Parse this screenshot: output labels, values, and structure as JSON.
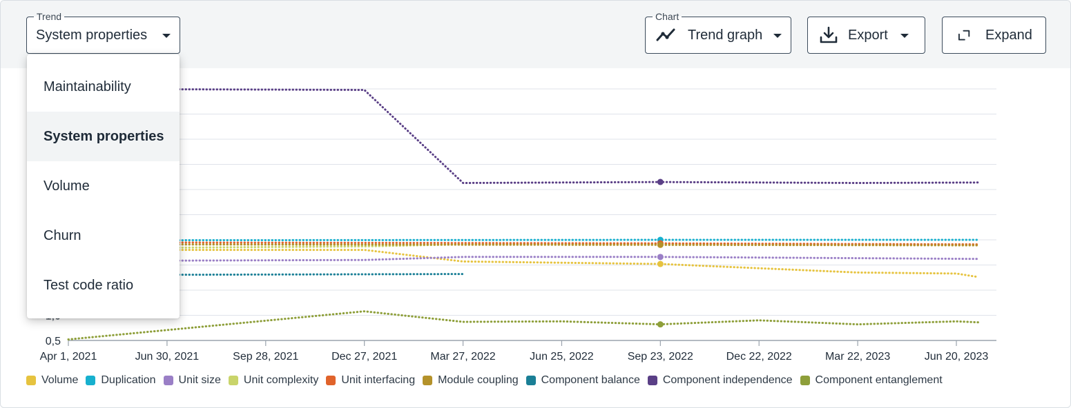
{
  "toolbar": {
    "trend_legend": "Trend",
    "trend_value": "System properties",
    "chart_legend": "Chart",
    "chart_value": "Trend graph",
    "export_label": "Export",
    "expand_label": "Expand"
  },
  "menu": {
    "items": [
      {
        "label": "Maintainability"
      },
      {
        "label": "System properties",
        "selected": true
      },
      {
        "label": "Volume"
      },
      {
        "label": "Churn"
      },
      {
        "label": "Test code ratio"
      }
    ]
  },
  "colors": {
    "grid": "#dfe3ea",
    "axis": "#9aa3ad"
  },
  "chart_data": {
    "type": "line",
    "x_ticks": [
      "Apr 1, 2021",
      "Jun 30, 2021",
      "Sep 28, 2021",
      "Dec 27, 2021",
      "Mar 27, 2022",
      "Jun 25, 2022",
      "Sep 23, 2022",
      "Dec 22, 2022",
      "Mar 22, 2023",
      "Jun 20, 2023"
    ],
    "y_ticks": [
      {
        "value": 0.5,
        "label": "0,5"
      },
      {
        "value": 1.0,
        "label": "1,0"
      }
    ],
    "ylim": [
      0.5,
      5.5
    ],
    "grid": true,
    "line_style": "dotted",
    "legend_placement": "bottom",
    "series": [
      {
        "name": "Volume",
        "color": "#e6c33f",
        "x": [
          "Apr 1, 2021",
          "Dec 27, 2021",
          "Mar 27, 2022",
          "Sep 23, 2022",
          "Mar 22, 2023",
          "Jun 20, 2023",
          "Jul 10, 2023"
        ],
        "y": [
          2.3,
          2.3,
          2.07,
          2.02,
          1.85,
          1.83,
          1.76
        ]
      },
      {
        "name": "Duplication",
        "color": "#17b0ce",
        "x": [
          "Apr 1, 2021",
          "Sep 23, 2022",
          "Jul 10, 2023"
        ],
        "y": [
          2.49,
          2.5,
          2.5
        ]
      },
      {
        "name": "Unit size",
        "color": "#9a7fc6",
        "x": [
          "Apr 1, 2021",
          "Dec 27, 2021",
          "Mar 27, 2022",
          "Sep 23, 2022",
          "Jul 10, 2023"
        ],
        "y": [
          2.08,
          2.1,
          2.16,
          2.16,
          2.12
        ]
      },
      {
        "name": "Unit complexity",
        "color": "#c9d46a",
        "x": [
          "Apr 1, 2021",
          "Dec 27, 2021",
          "Mar 27, 2022",
          "Sep 23, 2022",
          "Jul 10, 2023"
        ],
        "y": [
          2.33,
          2.37,
          2.41,
          2.42,
          2.41
        ]
      },
      {
        "name": "Unit interfacing",
        "color": "#e0632b",
        "x": [
          "Apr 1, 2021",
          "Sep 23, 2022",
          "Jul 10, 2023"
        ],
        "y": [
          2.45,
          2.43,
          2.41
        ]
      },
      {
        "name": "Module coupling",
        "color": "#b4922a",
        "x": [
          "Apr 1, 2021",
          "Sep 23, 2022",
          "Jul 10, 2023"
        ],
        "y": [
          2.41,
          2.4,
          2.39
        ]
      },
      {
        "name": "Component balance",
        "color": "#1a7f96",
        "x": [
          "Apr 1, 2021",
          "Mar 27, 2022"
        ],
        "y": [
          1.8,
          1.82
        ]
      },
      {
        "name": "Component independence",
        "color": "#5a3f86",
        "x": [
          "Apr 1, 2021",
          "Dec 27, 2021",
          "Mar 27, 2022",
          "Sep 23, 2022",
          "Mar 22, 2023",
          "Jul 10, 2023"
        ],
        "y": [
          5.5,
          5.48,
          3.63,
          3.65,
          3.63,
          3.64
        ]
      },
      {
        "name": "Component entanglement",
        "color": "#8e9f3a",
        "x": [
          "Apr 1, 2021",
          "Dec 27, 2021",
          "Mar 27, 2022",
          "Jun 25, 2022",
          "Sep 23, 2022",
          "Dec 22, 2022",
          "Mar 22, 2023",
          "Jun 20, 2023",
          "Jul 10, 2023"
        ],
        "y": [
          0.52,
          1.08,
          0.87,
          0.88,
          0.82,
          0.9,
          0.82,
          0.88,
          0.86
        ]
      }
    ],
    "highlight_x": "Sep 23, 2022"
  }
}
